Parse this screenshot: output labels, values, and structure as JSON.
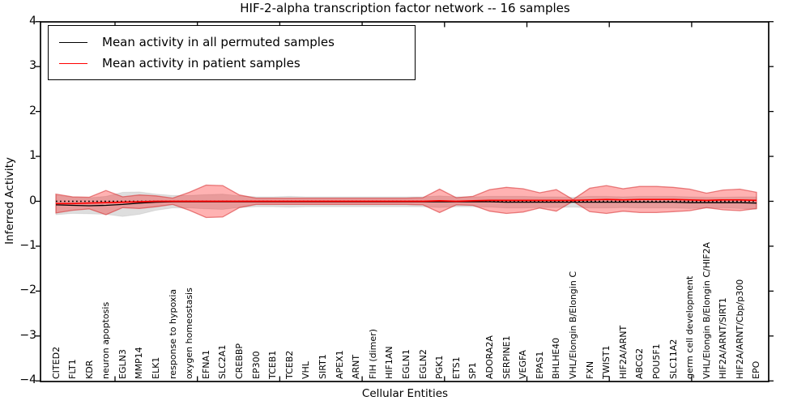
{
  "chart_data": {
    "type": "line",
    "title": "HIF-2-alpha transcription factor network -- 16 samples",
    "xlabel": "Cellular Entities",
    "ylabel": "Inferred Activity",
    "ylim": [
      -4,
      4
    ],
    "yticks": [
      "4",
      "3",
      "2",
      "1",
      "0",
      "−1",
      "−2",
      "−3",
      "−4"
    ],
    "grid": false,
    "legend_position": "upper left",
    "zero_line": "dotted black at y=0",
    "categories": [
      "CITED2",
      "FLT1",
      "KDR",
      "neuron apoptosis",
      "EGLN3",
      "MMP14",
      "ELK1",
      "response to hypoxia",
      "oxygen homeostasis",
      "EFNA1",
      "SLC2A1",
      "CREBBP",
      "EP300",
      "TCEB1",
      "TCEB2",
      "VHL",
      "SIRT1",
      "APEX1",
      "ARNT",
      "FIH (dimer)",
      "HIF1AN",
      "EGLN1",
      "EGLN2",
      "PGK1",
      "ETS1",
      "SP1",
      "ADORA2A",
      "SERPINE1",
      "VEGFA",
      "EPAS1",
      "BHLHE40",
      "VHL/Elongin B/Elongin C",
      "FXN",
      "TWIST1",
      "HIF2A/ARNT",
      "ABCG2",
      "POU5F1",
      "SLC11A2",
      "germ cell development",
      "VHL/Elongin B/Elongin C/HIF2A",
      "HIF2A/ARNT/SIRT1",
      "HIF2A/ARNT/Cbp/p300",
      "EPO"
    ],
    "series": [
      {
        "name": "Mean activity in all permuted samples",
        "color": "#000000",
        "band_color": "rgba(0,0,0,0.13)",
        "band_edge": "rgba(0,0,0,0.08)",
        "mean": [
          -0.08,
          -0.09,
          -0.1,
          -0.09,
          -0.07,
          -0.04,
          -0.02,
          -0.01,
          -0.01,
          -0.01,
          -0.01,
          -0.01,
          -0.01,
          -0.01,
          -0.01,
          -0.01,
          -0.01,
          -0.01,
          -0.01,
          -0.01,
          -0.01,
          -0.01,
          -0.01,
          -0.01,
          -0.01,
          -0.01,
          -0.01,
          -0.02,
          -0.02,
          -0.02,
          -0.02,
          -0.02,
          -0.02,
          -0.02,
          -0.02,
          -0.02,
          -0.02,
          -0.02,
          -0.03,
          -0.03,
          -0.03,
          -0.03,
          -0.04
        ],
        "std": [
          0.22,
          0.18,
          0.18,
          0.2,
          0.27,
          0.25,
          0.18,
          0.14,
          0.14,
          0.16,
          0.17,
          0.13,
          0.11,
          0.11,
          0.12,
          0.11,
          0.11,
          0.11,
          0.11,
          0.11,
          0.11,
          0.11,
          0.11,
          0.13,
          0.11,
          0.11,
          0.12,
          0.13,
          0.13,
          0.12,
          0.12,
          0.11,
          0.13,
          0.13,
          0.12,
          0.13,
          0.13,
          0.13,
          0.13,
          0.12,
          0.12,
          0.13,
          0.14
        ]
      },
      {
        "name": "Mean activity in patient samples",
        "color": "#ff0000",
        "band_color": "rgba(255,0,0,0.30)",
        "band_edge": "rgba(214,39,40,0.55)",
        "mean": [
          -0.05,
          -0.05,
          -0.04,
          -0.03,
          -0.02,
          -0.01,
          0,
          0,
          0,
          0,
          0,
          0,
          0,
          0,
          0,
          0,
          0,
          0,
          0,
          0,
          0,
          0,
          0,
          0.01,
          0,
          0.01,
          0.02,
          0.02,
          0.02,
          0.02,
          0.02,
          0.02,
          0.03,
          0.04,
          0.03,
          0.04,
          0.04,
          0.04,
          0.03,
          0.02,
          0.03,
          0.03,
          0.02
        ],
        "std": [
          0.21,
          0.15,
          0.13,
          0.27,
          0.12,
          0.15,
          0.12,
          0.07,
          0.2,
          0.36,
          0.35,
          0.14,
          0.07,
          0.07,
          0.07,
          0.07,
          0.07,
          0.07,
          0.07,
          0.07,
          0.07,
          0.07,
          0.08,
          0.26,
          0.08,
          0.1,
          0.24,
          0.29,
          0.26,
          0.17,
          0.24,
          0.02,
          0.26,
          0.31,
          0.25,
          0.29,
          0.29,
          0.27,
          0.24,
          0.16,
          0.22,
          0.24,
          0.18
        ]
      }
    ]
  }
}
